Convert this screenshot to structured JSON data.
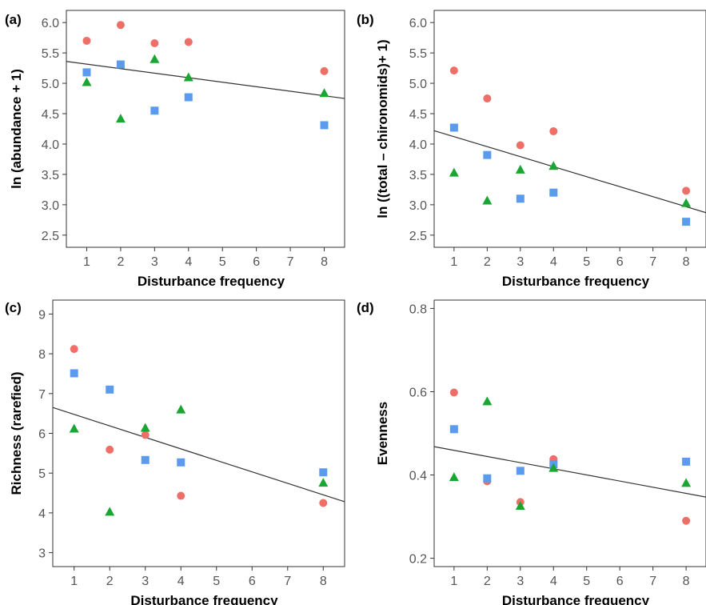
{
  "colors": {
    "circle": "#EE6F67",
    "square": "#5B9BEE",
    "triangle": "#1AA632"
  },
  "chart_data": [
    {
      "type": "scatter",
      "panel": "(a)",
      "xlabel": "Disturbance frequency",
      "ylabel": "ln (abundance + 1)",
      "xlim": [
        0.4,
        8.6
      ],
      "ylim": [
        2.3,
        6.2
      ],
      "xticks": [
        1,
        2,
        3,
        4,
        5,
        6,
        7,
        8
      ],
      "yticks": [
        2.5,
        3.0,
        3.5,
        4.0,
        4.5,
        5.0,
        5.5,
        6.0
      ],
      "ytick_labels": [
        "2.5",
        "3.0",
        "3.5",
        "4.0",
        "4.5",
        "5.0",
        "5.5",
        "6.0"
      ],
      "series": [
        {
          "marker": "circle",
          "x": [
            1,
            2,
            3,
            4,
            8
          ],
          "y": [
            5.7,
            5.96,
            5.66,
            5.68,
            5.2
          ]
        },
        {
          "marker": "square",
          "x": [
            1,
            2,
            3,
            4,
            8
          ],
          "y": [
            5.18,
            5.31,
            4.55,
            4.77,
            4.31
          ]
        },
        {
          "marker": "triangle",
          "x": [
            1,
            2,
            3,
            4,
            8
          ],
          "y": [
            5.02,
            4.42,
            5.4,
            5.1,
            4.84
          ]
        }
      ],
      "fit": {
        "x": [
          0.4,
          8.6
        ],
        "y": [
          5.36,
          4.75
        ]
      }
    },
    {
      "type": "scatter",
      "panel": "(b)",
      "xlabel": "Disturbance frequency",
      "ylabel": "ln ((total – chironomids)+ 1)",
      "xlim": [
        0.4,
        8.6
      ],
      "ylim": [
        2.3,
        6.2
      ],
      "xticks": [
        1,
        2,
        3,
        4,
        5,
        6,
        7,
        8
      ],
      "yticks": [
        2.5,
        3.0,
        3.5,
        4.0,
        4.5,
        5.0,
        5.5,
        6.0
      ],
      "ytick_labels": [
        "2.5",
        "3.0",
        "3.5",
        "4.0",
        "4.5",
        "5.0",
        "5.5",
        "6.0"
      ],
      "series": [
        {
          "marker": "circle",
          "x": [
            1,
            2,
            3,
            4,
            8
          ],
          "y": [
            5.21,
            4.75,
            3.98,
            4.21,
            3.23
          ]
        },
        {
          "marker": "square",
          "x": [
            1,
            2,
            3,
            4,
            8
          ],
          "y": [
            4.27,
            3.82,
            3.1,
            3.2,
            2.72
          ]
        },
        {
          "marker": "triangle",
          "x": [
            1,
            2,
            3,
            4,
            8
          ],
          "y": [
            3.53,
            3.07,
            3.58,
            3.64,
            3.03
          ]
        }
      ],
      "fit": {
        "x": [
          0.4,
          8.6
        ],
        "y": [
          4.22,
          2.87
        ]
      }
    },
    {
      "type": "scatter",
      "panel": "(c)",
      "xlabel": "Disturbance frequency",
      "ylabel": "Richness (rarefied)",
      "xlim": [
        0.4,
        8.6
      ],
      "ylim": [
        2.65,
        9.35
      ],
      "xticks": [
        1,
        2,
        3,
        4,
        5,
        6,
        7,
        8
      ],
      "yticks": [
        3,
        4,
        5,
        6,
        7,
        8,
        9
      ],
      "ytick_labels": [
        "3",
        "4",
        "5",
        "6",
        "7",
        "8",
        "9"
      ],
      "series": [
        {
          "marker": "circle",
          "x": [
            1,
            2,
            3,
            4,
            8
          ],
          "y": [
            8.12,
            5.59,
            5.96,
            4.43,
            4.25
          ]
        },
        {
          "marker": "square",
          "x": [
            1,
            2,
            3,
            4,
            8
          ],
          "y": [
            7.51,
            7.1,
            5.33,
            5.27,
            5.02
          ]
        },
        {
          "marker": "triangle",
          "x": [
            1,
            2,
            3,
            4,
            8
          ],
          "y": [
            6.12,
            4.03,
            6.14,
            6.6,
            4.76
          ]
        }
      ],
      "fit": {
        "x": [
          0.4,
          8.6
        ],
        "y": [
          6.65,
          4.28
        ]
      }
    },
    {
      "type": "scatter",
      "panel": "(d)",
      "xlabel": "Disturbance frequency",
      "ylabel": "Evenness",
      "xlim": [
        0.4,
        8.6
      ],
      "ylim": [
        0.18,
        0.82
      ],
      "xticks": [
        1,
        2,
        3,
        4,
        5,
        6,
        7,
        8
      ],
      "yticks": [
        0.2,
        0.4,
        0.6,
        0.8
      ],
      "ytick_labels": [
        "0.2",
        "0.4",
        "0.6",
        "0.8"
      ],
      "series": [
        {
          "marker": "circle",
          "x": [
            1,
            2,
            3,
            4,
            8
          ],
          "y": [
            0.598,
            0.385,
            0.335,
            0.438,
            0.29
          ]
        },
        {
          "marker": "square",
          "x": [
            1,
            2,
            3,
            4,
            8
          ],
          "y": [
            0.51,
            0.392,
            0.41,
            0.426,
            0.432
          ]
        },
        {
          "marker": "triangle",
          "x": [
            1,
            2,
            3,
            4,
            8
          ],
          "y": [
            0.395,
            0.577,
            0.326,
            0.417,
            0.381
          ]
        }
      ],
      "fit": {
        "x": [
          0.4,
          8.6
        ],
        "y": [
          0.468,
          0.347
        ]
      }
    }
  ]
}
